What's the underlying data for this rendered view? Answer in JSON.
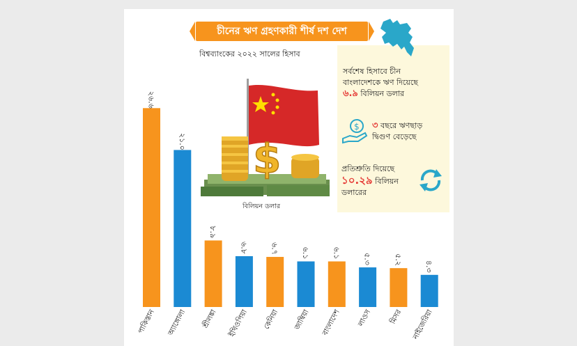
{
  "title": "চীনের ঋণ গ্রহণকারী শীর্ষ দশ দেশ",
  "subtitle": "বিশ্বব্যাংকের ২০২২ সালের হিসাব",
  "unit_label": "বিলিয়ন ডলার",
  "info": {
    "line1": "সর্বশেষ হিসাবে চীন",
    "line2": "বাংলাদেশকে ঋণ দিয়েছে",
    "amount": "৬.৯",
    "amount_unit": "বিলিয়ন ডলার",
    "growth_num": "৩",
    "growth_line1": "বছরে ঋণছাড়",
    "growth_line2": "দ্বিগুণ বেড়েছে",
    "pledge_line": "প্রতিশ্রুতি দিয়েছে",
    "pledge_amount": "১০.২৯",
    "pledge_unit1": "বিলিয়ন",
    "pledge_unit2": "ডলারের"
  },
  "colors": {
    "orange": "#f7941d",
    "blue": "#1b8ad3",
    "red": "#e53935",
    "teal": "#2aa7c9"
  },
  "icons": [
    "bangladesh-map-icon",
    "china-flag-icon",
    "coins-icon",
    "money-hand-icon",
    "refresh-cycle-icon"
  ],
  "chart_data": {
    "type": "bar",
    "title": "চীনের ঋণ গ্রহণকারী শীর্ষ দশ দেশ",
    "subtitle": "বিশ্বব্যাংকের ২০২২ সালের হিসাব",
    "ylabel": "বিলিয়ন ডলার",
    "categories": [
      "পাকিস্তান",
      "অ্যাঙ্গোলা",
      "শ্রীলঙ্কা",
      "ইথিওপিয়া",
      "কেনিয়া",
      "জাম্বিয়া",
      "বাংলাদেশ",
      "লাওস",
      "মিসর",
      "নাইজেরিয়া"
    ],
    "values": [
      26.6,
      21.0,
      8.9,
      6.8,
      6.7,
      6.1,
      6.1,
      5.3,
      5.2,
      4.3
    ],
    "value_labels": [
      "২৬.৬",
      "২১.০",
      "৮.৯",
      "৬.৮",
      "৬.৭",
      "৬.১",
      "৬.১",
      "৫.৩",
      "৫.২",
      "৪.৩"
    ],
    "bar_colors": [
      "#f7941d",
      "#1b8ad3",
      "#f7941d",
      "#1b8ad3",
      "#f7941d",
      "#1b8ad3",
      "#f7941d",
      "#1b8ad3",
      "#f7941d",
      "#1b8ad3"
    ],
    "ylim": [
      0,
      27
    ]
  }
}
